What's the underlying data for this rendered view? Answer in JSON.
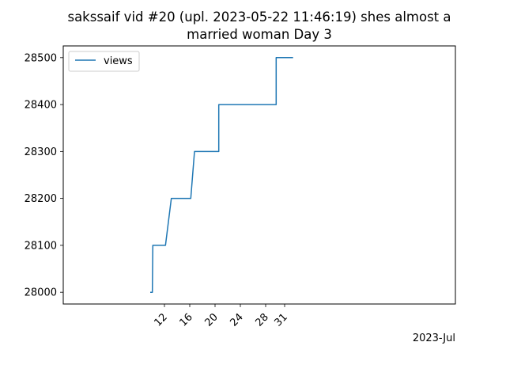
{
  "chart_data": {
    "type": "line",
    "title_line1": "sakssaif vid #20 (upl. 2023-05-22 11:46:19) shes almost a",
    "title_line2": "married woman   Day 3",
    "xlabel": "",
    "ylabel": "",
    "x_offset_label": "2023-Jul",
    "legend": {
      "placement": "top-left",
      "entries": [
        "views"
      ]
    },
    "grid": false,
    "xlim": [
      "2023-07-08T20:00",
      "2023-07-11T10:00"
    ],
    "ylim": [
      27975,
      28525
    ],
    "x_ticks": [
      {
        "label": "12",
        "value": "2023-07-09T12:00"
      },
      {
        "label": "16",
        "value": "2023-07-09T16:00"
      },
      {
        "label": "20",
        "value": "2023-07-09T20:00"
      },
      {
        "label": "24",
        "value": "2023-07-10T00:00"
      },
      {
        "label": "28",
        "value": "2023-07-10T04:00"
      },
      {
        "label": "31",
        "value": "2023-07-10T07:00"
      }
    ],
    "y_ticks": [
      28000,
      28100,
      28200,
      28300,
      28400,
      28500
    ],
    "series": [
      {
        "name": "views",
        "color": "#1f77b4",
        "points": [
          {
            "x": "2023-07-09T09:45",
            "y": 28000
          },
          {
            "x": "2023-07-09T10:05",
            "y": 28000
          },
          {
            "x": "2023-07-09T10:10",
            "y": 28100
          },
          {
            "x": "2023-07-09T12:10",
            "y": 28100
          },
          {
            "x": "2023-07-09T13:05",
            "y": 28200
          },
          {
            "x": "2023-07-09T16:10",
            "y": 28200
          },
          {
            "x": "2023-07-09T16:45",
            "y": 28300
          },
          {
            "x": "2023-07-09T20:35",
            "y": 28300
          },
          {
            "x": "2023-07-09T20:35",
            "y": 28400
          },
          {
            "x": "2023-07-10T05:40",
            "y": 28400
          },
          {
            "x": "2023-07-10T05:40",
            "y": 28500
          },
          {
            "x": "2023-07-10T08:20",
            "y": 28500
          }
        ]
      }
    ]
  }
}
